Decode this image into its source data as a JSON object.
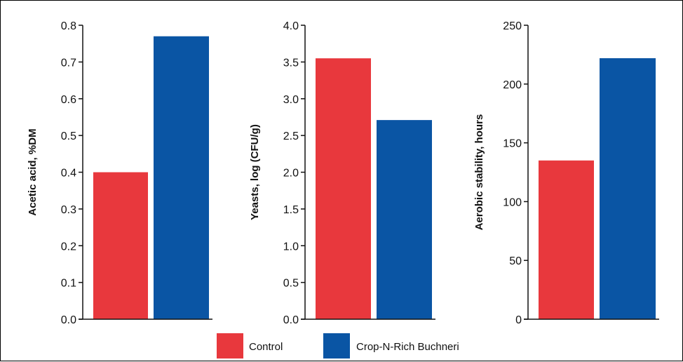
{
  "chart_data": [
    {
      "type": "bar",
      "categories": [
        "Control",
        "Crop-N-Rich Buchneri"
      ],
      "values": [
        0.4,
        0.77
      ],
      "ylabel": "Acetic acid, %DM",
      "ylim": [
        0,
        0.8
      ],
      "yticks": [
        0.0,
        0.1,
        0.2,
        0.3,
        0.4,
        0.5,
        0.6,
        0.7,
        0.8
      ],
      "ytick_labels": [
        "0.0",
        "0.1",
        "0.2",
        "0.3",
        "0.4",
        "0.5",
        "0.6",
        "0.7",
        "0.8"
      ],
      "grid": false
    },
    {
      "type": "bar",
      "categories": [
        "Control",
        "Crop-N-Rich Buchneri"
      ],
      "values": [
        3.55,
        2.71
      ],
      "ylabel": "Yeasts, log (CFU/g)",
      "ylim": [
        0,
        4.0
      ],
      "yticks": [
        0.0,
        0.5,
        1.0,
        1.5,
        2.0,
        2.5,
        3.0,
        3.5,
        4.0
      ],
      "ytick_labels": [
        "0.0",
        "0.5",
        "1.0",
        "1.5",
        "2.0",
        "2.5",
        "3.0",
        "3.5",
        "4.0"
      ],
      "grid": false
    },
    {
      "type": "bar",
      "categories": [
        "Control",
        "Crop-N-Rich Buchneri"
      ],
      "values": [
        135,
        222
      ],
      "ylabel": "Aerobic stability, hours",
      "ylim": [
        0,
        250
      ],
      "yticks": [
        0,
        50,
        100,
        150,
        200,
        250
      ],
      "ytick_labels": [
        "0",
        "50",
        "100",
        "150",
        "200",
        "250"
      ],
      "grid": false
    }
  ],
  "legend": {
    "placement": "bottom-center",
    "items": [
      {
        "label": "Control",
        "color": "#e8383d"
      },
      {
        "label": "Crop-N-Rich Buchneri",
        "color": "#0a55a4"
      }
    ]
  },
  "colors": {
    "control": "#e8383d",
    "treatment": "#0a55a4",
    "axis": "#111111"
  }
}
